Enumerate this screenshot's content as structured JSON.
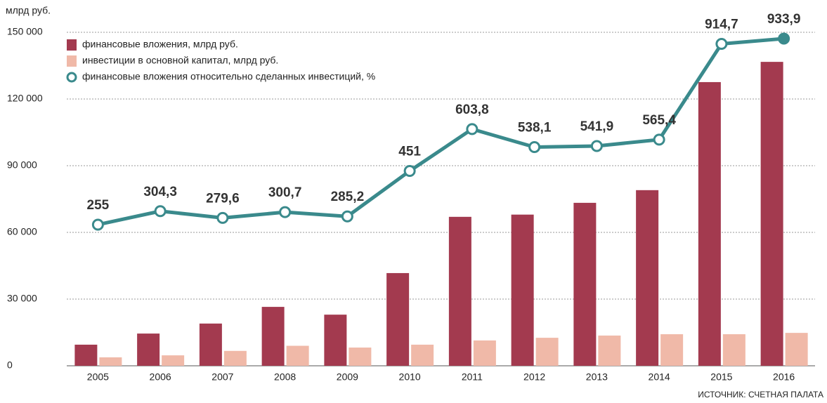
{
  "chart_data": {
    "type": "bar-line",
    "y_axis_label": "млрд руб.",
    "source": "ИСТОЧНИК: СЧЕТНАЯ ПАЛАТА",
    "categories": [
      "2005",
      "2006",
      "2007",
      "2008",
      "2009",
      "2010",
      "2011",
      "2012",
      "2013",
      "2014",
      "2015",
      "2016"
    ],
    "ylim": [
      0,
      150000
    ],
    "yticks": [
      0,
      {
        "value": 30000,
        "label": "30 000"
      },
      {
        "value": 60000,
        "label": "60 000"
      },
      {
        "value": 90000,
        "label": "90 000"
      },
      {
        "value": 120000,
        "label": "120 000"
      },
      {
        "value": 150000,
        "label": "150 000"
      }
    ],
    "y2lim": [
      -260,
      957
    ],
    "grid": true,
    "legend": "top-left",
    "series": [
      {
        "name": "финансовые вложения, млрд руб.",
        "type": "bar",
        "color": "#a33a4f",
        "values": [
          9500,
          14500,
          19000,
          26500,
          23000,
          41700,
          67000,
          68000,
          73300,
          79000,
          127600,
          136700
        ]
      },
      {
        "name": "инвестиции в основной капитал, млрд руб.",
        "type": "bar",
        "color": "#f0b9a8",
        "values": [
          3800,
          4700,
          6700,
          9000,
          8200,
          9500,
          11400,
          12600,
          13600,
          14200,
          14200,
          14800
        ]
      },
      {
        "name": "финансовые вложения относительно сделанных инвестиций, %",
        "type": "line",
        "axis": "y2",
        "color": "#3a8a8c",
        "values": [
          255,
          304.3,
          279.6,
          300.7,
          285.2,
          451,
          603.8,
          538.1,
          541.9,
          565.4,
          914.7,
          933.9
        ],
        "value_labels": [
          "255",
          "304,3",
          "279,6",
          "300,7",
          "285,2",
          "451",
          "603,8",
          "538,1",
          "541,9",
          "565,4",
          "914,7",
          "933,9"
        ]
      }
    ]
  }
}
